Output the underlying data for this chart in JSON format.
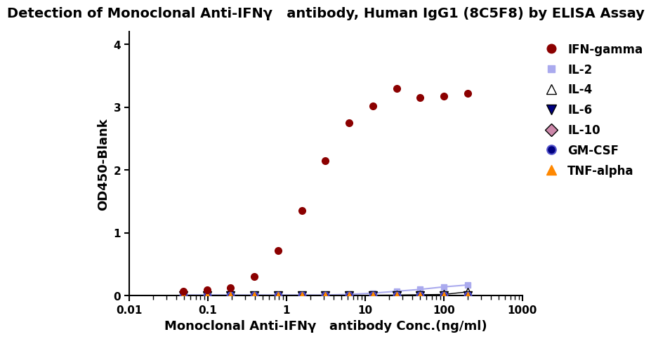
{
  "title": "Detection of Monoclonal Anti-IFNγ   antibody, Human IgG1 (8C5F8) by ELISA Assay",
  "xlabel": "Monoclonal Anti-IFNγ   antibody Conc.(ng/ml)",
  "ylabel": "OD450-Blank",
  "xlim": [
    0.01,
    1000
  ],
  "ylim": [
    0,
    4.2
  ],
  "yticks": [
    0,
    1,
    2,
    3,
    4
  ],
  "background_color": "#ffffff",
  "IFN_gamma": {
    "x": [
      0.049,
      0.098,
      0.195,
      0.39,
      0.78,
      1.563,
      3.125,
      6.25,
      12.5,
      25,
      50,
      100,
      200
    ],
    "y": [
      0.07,
      0.09,
      0.13,
      0.3,
      0.72,
      1.35,
      2.15,
      2.75,
      3.02,
      3.3,
      3.15,
      3.18,
      3.22
    ],
    "color": "#8B0000",
    "marker": "o",
    "markersize": 7,
    "label": "IFN-gamma"
  },
  "IL2": {
    "x": [
      0.049,
      0.098,
      0.195,
      0.39,
      0.78,
      1.563,
      3.125,
      6.25,
      12.5,
      25,
      50,
      100,
      200
    ],
    "y": [
      0.01,
      0.01,
      0.01,
      0.01,
      0.01,
      0.01,
      0.01,
      0.02,
      0.04,
      0.07,
      0.1,
      0.14,
      0.17
    ],
    "color": "#aaaaee",
    "marker": "s",
    "markersize": 6,
    "label": "IL-2"
  },
  "IL4": {
    "x": [
      0.049,
      0.098,
      0.195,
      0.39,
      0.78,
      1.563,
      3.125,
      6.25,
      12.5,
      25,
      50,
      100,
      200
    ],
    "y": [
      0.005,
      0.005,
      0.005,
      0.005,
      0.005,
      0.005,
      0.005,
      0.005,
      0.007,
      0.01,
      0.015,
      0.02,
      0.06
    ],
    "color": "#000000",
    "marker": "^",
    "markersize": 8,
    "label": "IL-4"
  },
  "IL6": {
    "x": [
      0.049,
      0.098,
      0.195,
      0.39,
      0.78,
      1.563,
      3.125,
      6.25,
      12.5,
      25,
      50,
      100,
      200
    ],
    "y": [
      0.005,
      0.005,
      0.005,
      0.005,
      0.005,
      0.005,
      0.005,
      0.005,
      0.005,
      0.005,
      0.005,
      0.005,
      0.005
    ],
    "color": "#000080",
    "marker": "v",
    "markersize": 8,
    "label": "IL-6"
  },
  "IL10": {
    "x": [
      0.049,
      0.098,
      0.195,
      0.39,
      0.78,
      1.563,
      3.125,
      6.25,
      12.5,
      25,
      50,
      100,
      200
    ],
    "y": [
      -0.005,
      -0.005,
      -0.005,
      -0.005,
      -0.005,
      -0.005,
      -0.005,
      -0.005,
      -0.005,
      -0.005,
      -0.005,
      -0.005,
      -0.005
    ],
    "color": "#cc88aa",
    "marker": "D",
    "markersize": 7,
    "label": "IL-10"
  },
  "GMCSF": {
    "x": [
      0.049,
      0.098,
      0.195,
      0.39,
      0.78,
      1.563,
      3.125,
      6.25,
      12.5,
      25,
      50,
      100,
      200
    ],
    "y": [
      0.003,
      0.003,
      0.003,
      0.003,
      0.003,
      0.003,
      0.003,
      0.003,
      0.003,
      0.003,
      0.003,
      0.003,
      0.003
    ],
    "color": "#000080",
    "marker": "o",
    "markersize": 7,
    "label": "GM-CSF"
  },
  "TNFalpha": {
    "x": [
      0.049,
      0.098,
      0.195,
      0.39,
      0.78,
      1.563,
      3.125,
      6.25,
      12.5,
      25,
      50,
      100,
      200
    ],
    "y": [
      -0.01,
      -0.01,
      -0.01,
      -0.01,
      -0.01,
      -0.01,
      -0.01,
      -0.01,
      -0.01,
      -0.01,
      -0.01,
      -0.01,
      -0.01
    ],
    "color": "#ff8800",
    "marker": "^",
    "markersize": 8,
    "label": "TNF-alpha"
  }
}
